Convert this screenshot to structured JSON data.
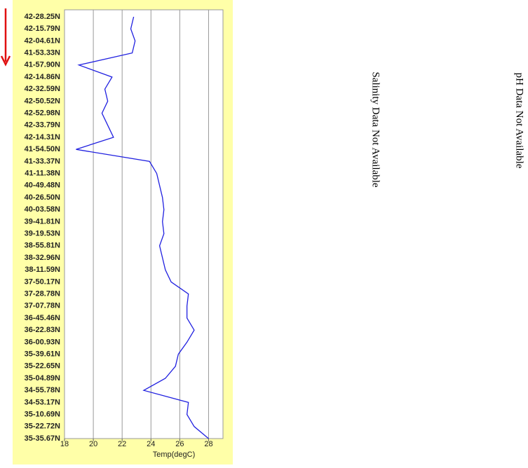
{
  "chart_data": {
    "type": "line",
    "xlabel": "Temp(degC)",
    "categories": [
      "42-28.25N",
      "42-15.79N",
      "42-04.61N",
      "41-53.33N",
      "41-57.90N",
      "42-14.86N",
      "42-32.59N",
      "42-50.52N",
      "42-52.98N",
      "42-33.79N",
      "42-14.31N",
      "41-54.50N",
      "41-33.37N",
      "41-11.38N",
      "40-49.48N",
      "40-26.50N",
      "40-03.58N",
      "39-41.81N",
      "39-19.53N",
      "38-55.81N",
      "38-32.96N",
      "38-11.59N",
      "37-50.17N",
      "37-28.78N",
      "37-07.78N",
      "36-45.46N",
      "36-22.83N",
      "36-00.93N",
      "35-39.61N",
      "35-22.65N",
      "35-04.89N",
      "34-55.78N",
      "34-53.17N",
      "35-10.69N",
      "35-22.72N",
      "35-35.67N"
    ],
    "values": [
      22.8,
      22.6,
      22.9,
      22.7,
      19.0,
      21.3,
      20.8,
      21.0,
      20.6,
      21.0,
      21.4,
      18.8,
      23.9,
      24.4,
      24.6,
      24.8,
      24.9,
      24.8,
      24.9,
      24.6,
      24.8,
      25.0,
      25.4,
      26.6,
      26.5,
      26.5,
      27.0,
      26.5,
      25.9,
      25.7,
      25.0,
      23.5,
      26.6,
      26.5,
      27.0,
      28.0
    ],
    "color": "#2020e0",
    "xlim": [
      18,
      29
    ],
    "xticks": [
      18,
      20,
      22,
      24,
      26,
      28
    ],
    "grid": true,
    "annotations": [
      "Salinity Data Not Available",
      "pH Data Not Available"
    ]
  }
}
